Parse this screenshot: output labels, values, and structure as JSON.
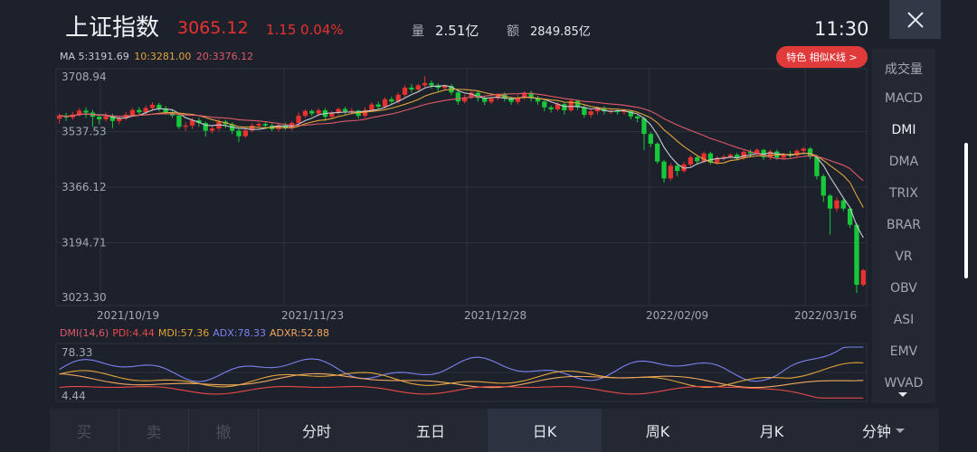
{
  "header": {
    "name": "上证指数",
    "price": "3065.12",
    "change": "1.15",
    "change_pct": "0.04%",
    "volume_label": "量",
    "volume": "2.51亿",
    "amount_label": "额",
    "amount": "2849.85亿",
    "time": "11:30"
  },
  "ma_legend": {
    "ma5": "MA 5:3191.69",
    "ma10": "10:3281.00",
    "ma20": "20:3376.12"
  },
  "feature_button": "特色 相似K线 >",
  "dmi_legend": {
    "main": "DMI(14,6)",
    "pdi": "PDI:4.44",
    "mdi": "MDI:57.36",
    "adx": "ADX:78.33",
    "adxr": "ADXR:52.88"
  },
  "price_axis": [
    "3708.94",
    "3537.53",
    "3366.12",
    "3194.71",
    "3023.30"
  ],
  "date_axis": [
    "2021/10/19",
    "2021/11/23",
    "2021/12/28",
    "2022/02/09",
    "2022/03/16"
  ],
  "dmi_axis": [
    "78.33",
    "4.44"
  ],
  "indicators": [
    "成交量",
    "MACD",
    "DMI",
    "DMA",
    "TRIX",
    "BRAR",
    "VR",
    "OBV",
    "ASI",
    "EMV",
    "WVAD"
  ],
  "active_indicator": "DMI",
  "trade_buttons": [
    "买",
    "卖",
    "撤"
  ],
  "periods": [
    "分时",
    "五日",
    "日K",
    "周K",
    "月K",
    "分钟"
  ],
  "active_period": "日K",
  "colors": {
    "up": "#e8322f",
    "down": "#17c93a",
    "ma5": "#c8ccd4",
    "ma10": "#e0a43a",
    "ma20": "#e05a6a",
    "pdi": "#e84a4a",
    "mdi": "#e0a43a",
    "adx": "#7b82f0",
    "adxr": "#f0a860"
  },
  "chart_data": {
    "type": "candlestick",
    "ylim": [
      3023.3,
      3708.94
    ],
    "candles": [
      [
        3577,
        3587,
        3562,
        3593
      ],
      [
        3587,
        3581,
        3570,
        3595
      ],
      [
        3581,
        3590,
        3574,
        3598
      ],
      [
        3590,
        3602,
        3584,
        3610
      ],
      [
        3602,
        3596,
        3580,
        3612
      ],
      [
        3596,
        3583,
        3552,
        3605
      ],
      [
        3583,
        3575,
        3560,
        3590
      ],
      [
        3575,
        3585,
        3568,
        3596
      ],
      [
        3585,
        3570,
        3548,
        3592
      ],
      [
        3570,
        3578,
        3560,
        3586
      ],
      [
        3578,
        3589,
        3572,
        3598
      ],
      [
        3589,
        3604,
        3583,
        3610
      ],
      [
        3604,
        3597,
        3590,
        3613
      ],
      [
        3597,
        3610,
        3590,
        3618
      ],
      [
        3610,
        3620,
        3602,
        3628
      ],
      [
        3620,
        3609,
        3600,
        3626
      ],
      [
        3609,
        3597,
        3590,
        3616
      ],
      [
        3597,
        3587,
        3580,
        3605
      ],
      [
        3587,
        3552,
        3545,
        3592
      ],
      [
        3552,
        3556,
        3540,
        3566
      ],
      [
        3556,
        3572,
        3546,
        3580
      ],
      [
        3572,
        3564,
        3552,
        3580
      ],
      [
        3564,
        3540,
        3522,
        3568
      ],
      [
        3540,
        3547,
        3532,
        3556
      ],
      [
        3547,
        3568,
        3540,
        3575
      ],
      [
        3568,
        3560,
        3548,
        3574
      ],
      [
        3560,
        3540,
        3530,
        3566
      ],
      [
        3540,
        3523,
        3505,
        3545
      ],
      [
        3523,
        3541,
        3518,
        3548
      ],
      [
        3541,
        3556,
        3535,
        3563
      ],
      [
        3556,
        3561,
        3548,
        3566
      ],
      [
        3561,
        3556,
        3546,
        3568
      ],
      [
        3556,
        3545,
        3539,
        3563
      ],
      [
        3545,
        3557,
        3538,
        3563
      ],
      [
        3557,
        3548,
        3542,
        3565
      ],
      [
        3548,
        3564,
        3540,
        3570
      ],
      [
        3564,
        3586,
        3560,
        3596
      ],
      [
        3586,
        3601,
        3580,
        3606
      ],
      [
        3601,
        3593,
        3585,
        3606
      ],
      [
        3593,
        3603,
        3585,
        3610
      ],
      [
        3603,
        3583,
        3570,
        3610
      ],
      [
        3583,
        3595,
        3578,
        3600
      ],
      [
        3595,
        3607,
        3588,
        3612
      ],
      [
        3607,
        3600,
        3590,
        3614
      ],
      [
        3600,
        3602,
        3590,
        3610
      ],
      [
        3602,
        3586,
        3578,
        3605
      ],
      [
        3586,
        3604,
        3580,
        3612
      ],
      [
        3604,
        3621,
        3598,
        3628
      ],
      [
        3621,
        3614,
        3606,
        3630
      ],
      [
        3614,
        3637,
        3608,
        3643
      ],
      [
        3637,
        3630,
        3620,
        3645
      ],
      [
        3630,
        3651,
        3624,
        3658
      ],
      [
        3651,
        3673,
        3644,
        3680
      ],
      [
        3673,
        3667,
        3658,
        3684
      ],
      [
        3667,
        3680,
        3662,
        3685
      ],
      [
        3680,
        3687,
        3674,
        3708
      ],
      [
        3687,
        3680,
        3670,
        3695
      ],
      [
        3680,
        3672,
        3660,
        3686
      ],
      [
        3672,
        3678,
        3665,
        3682
      ],
      [
        3678,
        3658,
        3650,
        3684
      ],
      [
        3658,
        3630,
        3620,
        3664
      ],
      [
        3630,
        3643,
        3625,
        3652
      ],
      [
        3643,
        3657,
        3637,
        3662
      ],
      [
        3657,
        3641,
        3630,
        3664
      ],
      [
        3641,
        3629,
        3619,
        3647
      ],
      [
        3629,
        3640,
        3622,
        3646
      ],
      [
        3640,
        3652,
        3634,
        3656
      ],
      [
        3652,
        3640,
        3630,
        3658
      ],
      [
        3640,
        3629,
        3620,
        3645
      ],
      [
        3629,
        3642,
        3622,
        3650
      ],
      [
        3642,
        3657,
        3636,
        3662
      ],
      [
        3657,
        3641,
        3630,
        3663
      ],
      [
        3641,
        3630,
        3620,
        3648
      ],
      [
        3630,
        3612,
        3600,
        3634
      ],
      [
        3612,
        3606,
        3596,
        3618
      ],
      [
        3606,
        3622,
        3600,
        3628
      ],
      [
        3622,
        3603,
        3590,
        3626
      ],
      [
        3603,
        3632,
        3598,
        3638
      ],
      [
        3632,
        3612,
        3604,
        3636
      ],
      [
        3612,
        3589,
        3580,
        3618
      ],
      [
        3589,
        3600,
        3580,
        3606
      ],
      [
        3600,
        3610,
        3590,
        3615
      ],
      [
        3610,
        3600,
        3590,
        3616
      ],
      [
        3600,
        3600,
        3592,
        3608
      ],
      [
        3600,
        3598,
        3590,
        3606
      ],
      [
        3598,
        3600,
        3590,
        3608
      ],
      [
        3600,
        3584,
        3575,
        3604
      ],
      [
        3584,
        3578,
        3566,
        3588
      ],
      [
        3578,
        3530,
        3480,
        3584
      ],
      [
        3530,
        3500,
        3490,
        3536
      ],
      [
        3500,
        3445,
        3438,
        3505
      ],
      [
        3445,
        3393,
        3380,
        3450
      ],
      [
        3393,
        3432,
        3386,
        3440
      ],
      [
        3432,
        3416,
        3400,
        3442
      ],
      [
        3416,
        3436,
        3410,
        3444
      ],
      [
        3436,
        3458,
        3430,
        3464
      ],
      [
        3458,
        3446,
        3436,
        3463
      ],
      [
        3446,
        3470,
        3440,
        3476
      ],
      [
        3470,
        3442,
        3436,
        3475
      ],
      [
        3442,
        3456,
        3436,
        3462
      ],
      [
        3456,
        3460,
        3448,
        3466
      ],
      [
        3460,
        3466,
        3454,
        3470
      ],
      [
        3466,
        3456,
        3448,
        3472
      ],
      [
        3456,
        3475,
        3450,
        3480
      ],
      [
        3475,
        3470,
        3460,
        3482
      ],
      [
        3470,
        3481,
        3465,
        3486
      ],
      [
        3481,
        3458,
        3450,
        3484
      ],
      [
        3458,
        3476,
        3450,
        3482
      ],
      [
        3476,
        3457,
        3450,
        3482
      ],
      [
        3457,
        3466,
        3450,
        3472
      ],
      [
        3466,
        3464,
        3456,
        3478
      ],
      [
        3464,
        3478,
        3458,
        3484
      ],
      [
        3478,
        3485,
        3472,
        3490
      ],
      [
        3485,
        3460,
        3452,
        3490
      ],
      [
        3460,
        3400,
        3390,
        3466
      ],
      [
        3400,
        3340,
        3320,
        3406
      ],
      [
        3340,
        3300,
        3220,
        3345
      ],
      [
        3300,
        3325,
        3290,
        3335
      ],
      [
        3325,
        3300,
        3292,
        3330
      ],
      [
        3300,
        3250,
        3240,
        3306
      ],
      [
        3250,
        3065,
        3040,
        3256
      ],
      [
        3065,
        3110,
        3060,
        3114
      ]
    ]
  }
}
